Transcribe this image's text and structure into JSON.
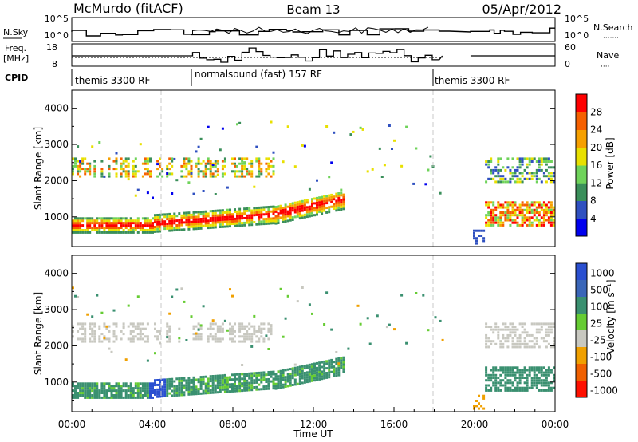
{
  "header": {
    "station": "McMurdo (fitACF)",
    "beam": "Beam 13",
    "date": "05/Apr/2012"
  },
  "panels": {
    "nsky": {
      "left_label": "N.Sky",
      "right_label": "N.Search",
      "right_dots": "·······",
      "left_ticks": [
        "10^5",
        "10^0"
      ],
      "right_ticks": [
        "10^5",
        "10^0"
      ]
    },
    "freq": {
      "left_label_1": "Freq.",
      "left_label_2": "[MHz]",
      "left_ticks": [
        "18",
        "8"
      ],
      "right_ticks": [
        "60",
        "0"
      ],
      "right_label": "Nave",
      "right_dots": "····"
    },
    "cpid": {
      "label": "CPID",
      "segments": [
        {
          "start": 0,
          "text": "themis 3300 RF"
        },
        {
          "start": 6,
          "text": "normalsound (fast) 157 RF"
        },
        {
          "start": 18,
          "text": "themis 3300 RF"
        }
      ]
    }
  },
  "colors": {
    "power": [
      "#0000ee",
      "#2f50c0",
      "#3a8f5a",
      "#6fd35a",
      "#e8e000",
      "#f6a000",
      "#f66000",
      "#ff0000"
    ],
    "velocity": [
      "#2a4fd0",
      "#3a66b8",
      "#3a9070",
      "#66cc33",
      "#c8c8c0",
      "#f0a000",
      "#f06000",
      "#ff1000"
    ]
  },
  "chart_data": [
    {
      "type": "heatmap",
      "name": "Power",
      "ylabel": "Slant Range [km]",
      "y_ticks": [
        1000,
        2000,
        3000,
        4000
      ],
      "ylim": [
        180,
        4500
      ],
      "xlim": [
        0,
        24
      ],
      "colorbar": {
        "label": "Power [dB]",
        "ticks": [
          "28",
          "24",
          "20",
          "16",
          "12",
          "8",
          "4"
        ]
      }
    },
    {
      "type": "heatmap",
      "name": "Velocity",
      "ylabel": "Slant Range [km]",
      "y_ticks": [
        1000,
        2000,
        3000,
        4000
      ],
      "ylim": [
        180,
        4500
      ],
      "xlim": [
        0,
        24
      ],
      "xlabel": "Time UT",
      "x_ticks": [
        "00:00",
        "04:00",
        "08:00",
        "12:00",
        "16:00",
        "20:00",
        "00:00"
      ],
      "colorbar": {
        "label": "Velocity [m s⁻¹]",
        "ticks": [
          "1000",
          "500",
          "100",
          "25",
          "-25",
          "-100",
          "-500",
          "-1000"
        ]
      }
    }
  ]
}
